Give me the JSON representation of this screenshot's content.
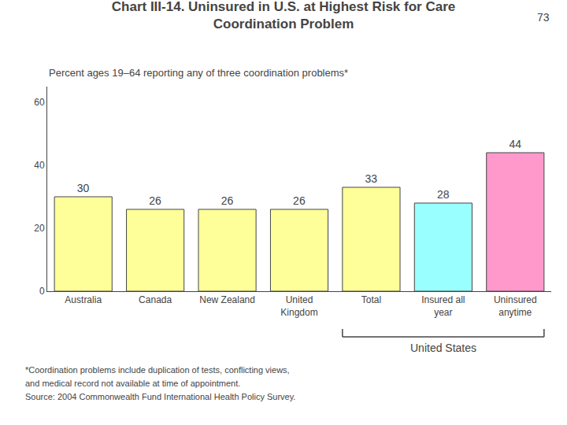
{
  "chart_data": {
    "type": "bar",
    "title": "Chart III-14. Uninsured in U.S. at Highest Risk for Care\nCoordination Problem",
    "subtitle": "Percent ages 19–64 reporting any of three coordination problems*",
    "page_number": "73",
    "categories": [
      "Australia",
      "Canada",
      "New Zealand",
      "United\nKingdom",
      "Total",
      "Insured all\nyear",
      "Uninsured\nanytime"
    ],
    "values": [
      30,
      26,
      26,
      26,
      33,
      28,
      44
    ],
    "colors": [
      "#FFFF99",
      "#FFFF99",
      "#FFFF99",
      "#FFFF99",
      "#FFFF99",
      "#99FFFF",
      "#FF99CC"
    ],
    "ylim": [
      0,
      65
    ],
    "yticks": [
      0,
      20,
      40,
      60
    ],
    "grid": false,
    "data_labels": true,
    "annotations": [
      {
        "text": "United States",
        "categories": [
          "Total",
          "Insured all\nyear",
          "Uninsured\nanytime"
        ]
      }
    ],
    "footnotes": [
      "*Coordination problems include duplication of tests, conflicting views,",
      "and medical record not available at time of appointment.",
      "Source: 2004 Commonwealth Fund International Health Policy Survey."
    ]
  }
}
